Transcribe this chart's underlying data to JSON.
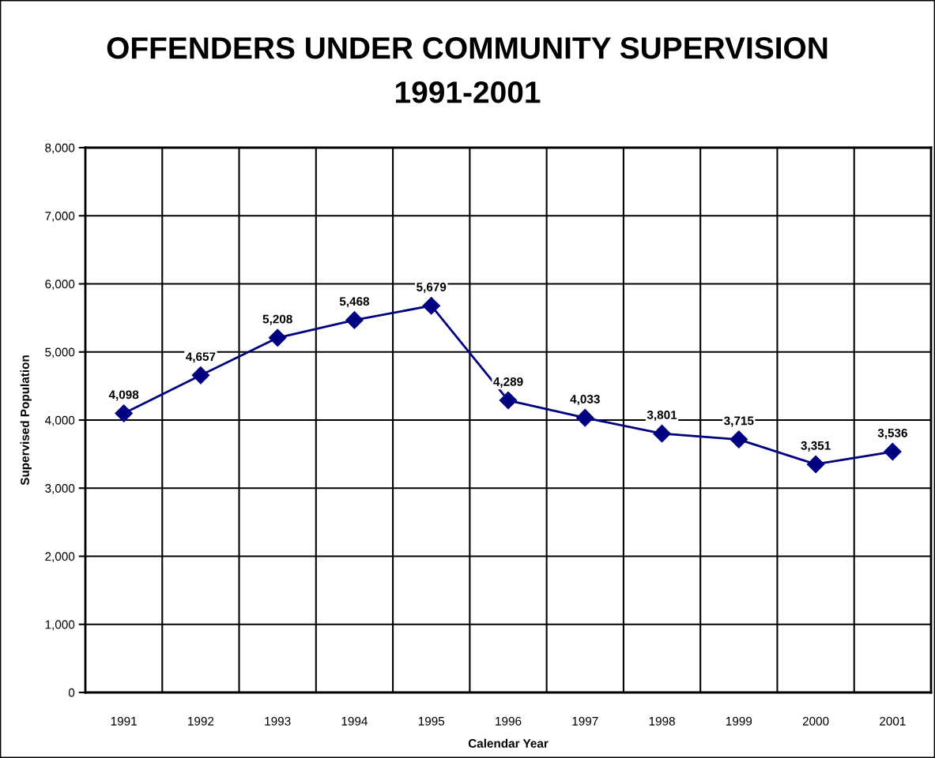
{
  "chart_data": {
    "type": "line",
    "title": "OFFENDERS UNDER COMMUNITY SUPERVISION\n1991-2001",
    "xlabel": "Calendar Year",
    "ylabel": "Supervised Population",
    "categories": [
      "1991",
      "1992",
      "1993",
      "1994",
      "1995",
      "1996",
      "1997",
      "1998",
      "1999",
      "2000",
      "2001"
    ],
    "series": [
      {
        "color": "#000080",
        "values": [
          4098,
          4657,
          5208,
          5468,
          5679,
          4289,
          4033,
          3801,
          3715,
          3351,
          3536
        ],
        "value_labels": [
          "4,098",
          "4,657",
          "5,208",
          "5,468",
          "5,679",
          "4,289",
          "4,033",
          "3,801",
          "3,715",
          "3,351",
          "3,536"
        ]
      }
    ],
    "ylim": [
      0,
      8000
    ],
    "yticks": [
      0,
      {
        "value": 1000,
        "label": "1,000"
      },
      {
        "value": 2000,
        "label": "2,000"
      },
      {
        "value": 3000,
        "label": "3,000"
      },
      {
        "value": 4000,
        "label": "4,000"
      },
      {
        "value": 5000,
        "label": "5,000"
      },
      {
        "value": 6000,
        "label": "6,000"
      },
      {
        "value": 7000,
        "label": "7,000"
      },
      {
        "value": 8000,
        "label": "8,000"
      }
    ],
    "grid": true,
    "marker": "diamond",
    "line_style": "solid"
  }
}
